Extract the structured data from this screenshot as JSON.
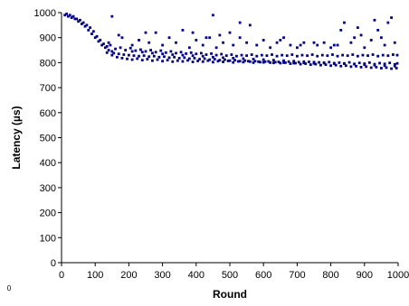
{
  "chart_data": {
    "type": "scatter",
    "title": "",
    "xlabel": "Round",
    "ylabel": "Latency (µs)",
    "xlim": [
      0,
      1000
    ],
    "ylim": [
      0,
      1000
    ],
    "x_ticks": [
      0,
      100,
      200,
      300,
      400,
      500,
      600,
      700,
      800,
      900,
      1000
    ],
    "y_ticks": [
      0,
      100,
      200,
      300,
      400,
      500,
      600,
      700,
      800,
      900,
      1000
    ],
    "x_tick_labels": [
      "0",
      "100",
      "200",
      "300",
      "400",
      "500",
      "600",
      "700",
      "800",
      "900",
      "1000"
    ],
    "y_tick_labels": [
      "0",
      "100",
      "200",
      "300",
      "400",
      "500",
      "600",
      "700",
      "800",
      "900",
      "1000"
    ],
    "stray_label": "0",
    "grid": false,
    "legend": "none",
    "marker_color": "#000080",
    "series": [
      {
        "points": [
          [
            10,
            990
          ],
          [
            20,
            985
          ],
          [
            30,
            980
          ],
          [
            40,
            975
          ],
          [
            50,
            965
          ],
          [
            60,
            955
          ],
          [
            70,
            945
          ],
          [
            80,
            930
          ],
          [
            90,
            915
          ],
          [
            100,
            900
          ],
          [
            110,
            885
          ],
          [
            120,
            870
          ],
          [
            130,
            860
          ],
          [
            140,
            850
          ],
          [
            150,
            845
          ],
          [
            15,
            995
          ],
          [
            25,
            990
          ],
          [
            35,
            985
          ],
          [
            45,
            975
          ],
          [
            55,
            970
          ],
          [
            65,
            960
          ],
          [
            75,
            950
          ],
          [
            85,
            940
          ],
          [
            95,
            925
          ],
          [
            105,
            905
          ],
          [
            115,
            890
          ],
          [
            125,
            875
          ],
          [
            135,
            865
          ],
          [
            145,
            870
          ],
          [
            160,
            855
          ],
          [
            175,
            860
          ],
          [
            190,
            850
          ],
          [
            205,
            858
          ],
          [
            220,
            848
          ],
          [
            235,
            852
          ],
          [
            250,
            845
          ],
          [
            265,
            850
          ],
          [
            280,
            842
          ],
          [
            295,
            848
          ],
          [
            310,
            840
          ],
          [
            325,
            845
          ],
          [
            340,
            838
          ],
          [
            355,
            842
          ],
          [
            370,
            836
          ],
          [
            385,
            840
          ],
          [
            400,
            835
          ],
          [
            415,
            838
          ],
          [
            430,
            832
          ],
          [
            445,
            836
          ],
          [
            460,
            830
          ],
          [
            475,
            834
          ],
          [
            490,
            828
          ],
          [
            505,
            832
          ],
          [
            520,
            826
          ],
          [
            535,
            830
          ],
          [
            550,
            828
          ],
          [
            565,
            832
          ],
          [
            580,
            826
          ],
          [
            595,
            830
          ],
          [
            610,
            828
          ],
          [
            625,
            832
          ],
          [
            640,
            826
          ],
          [
            655,
            830
          ],
          [
            670,
            828
          ],
          [
            685,
            832
          ],
          [
            700,
            826
          ],
          [
            715,
            830
          ],
          [
            730,
            828
          ],
          [
            745,
            832
          ],
          [
            760,
            826
          ],
          [
            775,
            830
          ],
          [
            790,
            828
          ],
          [
            805,
            832
          ],
          [
            820,
            826
          ],
          [
            835,
            830
          ],
          [
            850,
            828
          ],
          [
            865,
            832
          ],
          [
            880,
            826
          ],
          [
            895,
            830
          ],
          [
            910,
            828
          ],
          [
            925,
            832
          ],
          [
            940,
            826
          ],
          [
            955,
            830
          ],
          [
            970,
            828
          ],
          [
            985,
            832
          ],
          [
            1000,
            830
          ],
          [
            150,
            830
          ],
          [
            165,
            822
          ],
          [
            180,
            818
          ],
          [
            195,
            815
          ],
          [
            210,
            812
          ],
          [
            225,
            816
          ],
          [
            240,
            810
          ],
          [
            255,
            814
          ],
          [
            270,
            808
          ],
          [
            285,
            812
          ],
          [
            300,
            806
          ],
          [
            315,
            810
          ],
          [
            330,
            804
          ],
          [
            345,
            808
          ],
          [
            360,
            805
          ],
          [
            375,
            809
          ],
          [
            390,
            803
          ],
          [
            405,
            807
          ],
          [
            420,
            804
          ],
          [
            435,
            808
          ],
          [
            450,
            802
          ],
          [
            465,
            806
          ],
          [
            480,
            803
          ],
          [
            495,
            807
          ],
          [
            510,
            801
          ],
          [
            525,
            805
          ],
          [
            540,
            802
          ],
          [
            555,
            806
          ],
          [
            570,
            800
          ],
          [
            585,
            804
          ],
          [
            600,
            801
          ],
          [
            615,
            805
          ],
          [
            630,
            799
          ],
          [
            645,
            803
          ],
          [
            660,
            800
          ],
          [
            675,
            804
          ],
          [
            690,
            798
          ],
          [
            705,
            802
          ],
          [
            720,
            799
          ],
          [
            735,
            803
          ],
          [
            750,
            797
          ],
          [
            765,
            801
          ],
          [
            780,
            798
          ],
          [
            795,
            802
          ],
          [
            810,
            796
          ],
          [
            825,
            800
          ],
          [
            840,
            797
          ],
          [
            855,
            801
          ],
          [
            870,
            795
          ],
          [
            885,
            799
          ],
          [
            900,
            796
          ],
          [
            915,
            800
          ],
          [
            930,
            794
          ],
          [
            945,
            798
          ],
          [
            960,
            795
          ],
          [
            975,
            799
          ],
          [
            990,
            793
          ],
          [
            1000,
            797
          ],
          [
            135,
            840
          ],
          [
            155,
            838
          ],
          [
            170,
            835
          ],
          [
            185,
            832
          ],
          [
            200,
            830
          ],
          [
            215,
            828
          ],
          [
            230,
            826
          ],
          [
            245,
            828
          ],
          [
            260,
            824
          ],
          [
            275,
            826
          ],
          [
            290,
            822
          ],
          [
            305,
            824
          ],
          [
            320,
            820
          ],
          [
            335,
            822
          ],
          [
            350,
            818
          ],
          [
            365,
            820
          ],
          [
            380,
            816
          ],
          [
            395,
            818
          ],
          [
            410,
            814
          ],
          [
            425,
            816
          ],
          [
            440,
            812
          ],
          [
            455,
            814
          ],
          [
            470,
            810
          ],
          [
            485,
            812
          ],
          [
            500,
            808
          ],
          [
            515,
            810
          ],
          [
            530,
            806
          ],
          [
            545,
            808
          ],
          [
            560,
            804
          ],
          [
            575,
            806
          ],
          [
            590,
            802
          ],
          [
            605,
            804
          ],
          [
            620,
            800
          ],
          [
            635,
            802
          ],
          [
            650,
            798
          ],
          [
            665,
            800
          ],
          [
            680,
            796
          ],
          [
            695,
            798
          ],
          [
            710,
            794
          ],
          [
            725,
            796
          ],
          [
            740,
            792
          ],
          [
            755,
            794
          ],
          [
            770,
            790
          ],
          [
            785,
            792
          ],
          [
            800,
            788
          ],
          [
            815,
            790
          ],
          [
            830,
            786
          ],
          [
            845,
            788
          ],
          [
            860,
            784
          ],
          [
            875,
            786
          ],
          [
            890,
            782
          ],
          [
            905,
            784
          ],
          [
            920,
            780
          ],
          [
            935,
            782
          ],
          [
            950,
            778
          ],
          [
            965,
            780
          ],
          [
            980,
            776
          ],
          [
            995,
            778
          ],
          [
            140,
            880
          ],
          [
            180,
            900
          ],
          [
            210,
            870
          ],
          [
            230,
            890
          ],
          [
            260,
            880
          ],
          [
            280,
            920
          ],
          [
            300,
            870
          ],
          [
            320,
            900
          ],
          [
            340,
            880
          ],
          [
            360,
            930
          ],
          [
            380,
            860
          ],
          [
            400,
            890
          ],
          [
            420,
            870
          ],
          [
            440,
            900
          ],
          [
            460,
            860
          ],
          [
            480,
            880
          ],
          [
            500,
            920
          ],
          [
            510,
            870
          ],
          [
            530,
            900
          ],
          [
            550,
            880
          ],
          [
            560,
            950
          ],
          [
            580,
            870
          ],
          [
            600,
            890
          ],
          [
            620,
            860
          ],
          [
            640,
            880
          ],
          [
            660,
            900
          ],
          [
            680,
            870
          ],
          [
            700,
            860
          ],
          [
            720,
            880
          ],
          [
            760,
            870
          ],
          [
            780,
            880
          ],
          [
            800,
            860
          ],
          [
            820,
            870
          ],
          [
            840,
            960
          ],
          [
            860,
            880
          ],
          [
            880,
            940
          ],
          [
            900,
            860
          ],
          [
            920,
            890
          ],
          [
            940,
            930
          ],
          [
            960,
            870
          ],
          [
            980,
            980
          ],
          [
            150,
            985
          ],
          [
            170,
            910
          ],
          [
            250,
            920
          ],
          [
            390,
            920
          ],
          [
            430,
            900
          ],
          [
            450,
            990
          ],
          [
            470,
            910
          ],
          [
            530,
            960
          ],
          [
            650,
            890
          ],
          [
            710,
            870
          ],
          [
            750,
            880
          ],
          [
            810,
            870
          ],
          [
            830,
            930
          ],
          [
            870,
            900
          ],
          [
            890,
            910
          ],
          [
            930,
            970
          ],
          [
            950,
            900
          ],
          [
            970,
            960
          ],
          [
            990,
            880
          ],
          [
            210,
            845
          ],
          [
            240,
            842
          ],
          [
            270,
            838
          ],
          [
            300,
            835
          ],
          [
            330,
            832
          ],
          [
            360,
            830
          ],
          [
            390,
            828
          ],
          [
            420,
            826
          ],
          [
            450,
            822
          ],
          [
            480,
            820
          ],
          [
            510,
            818
          ],
          [
            540,
            816
          ],
          [
            570,
            814
          ],
          [
            600,
            812
          ],
          [
            630,
            810
          ],
          [
            660,
            808
          ],
          [
            690,
            806
          ],
          [
            720,
            804
          ],
          [
            750,
            802
          ],
          [
            780,
            800
          ],
          [
            810,
            798
          ],
          [
            840,
            796
          ],
          [
            870,
            794
          ],
          [
            900,
            792
          ],
          [
            930,
            790
          ],
          [
            960,
            788
          ],
          [
            990,
            786
          ]
        ]
      }
    ]
  }
}
